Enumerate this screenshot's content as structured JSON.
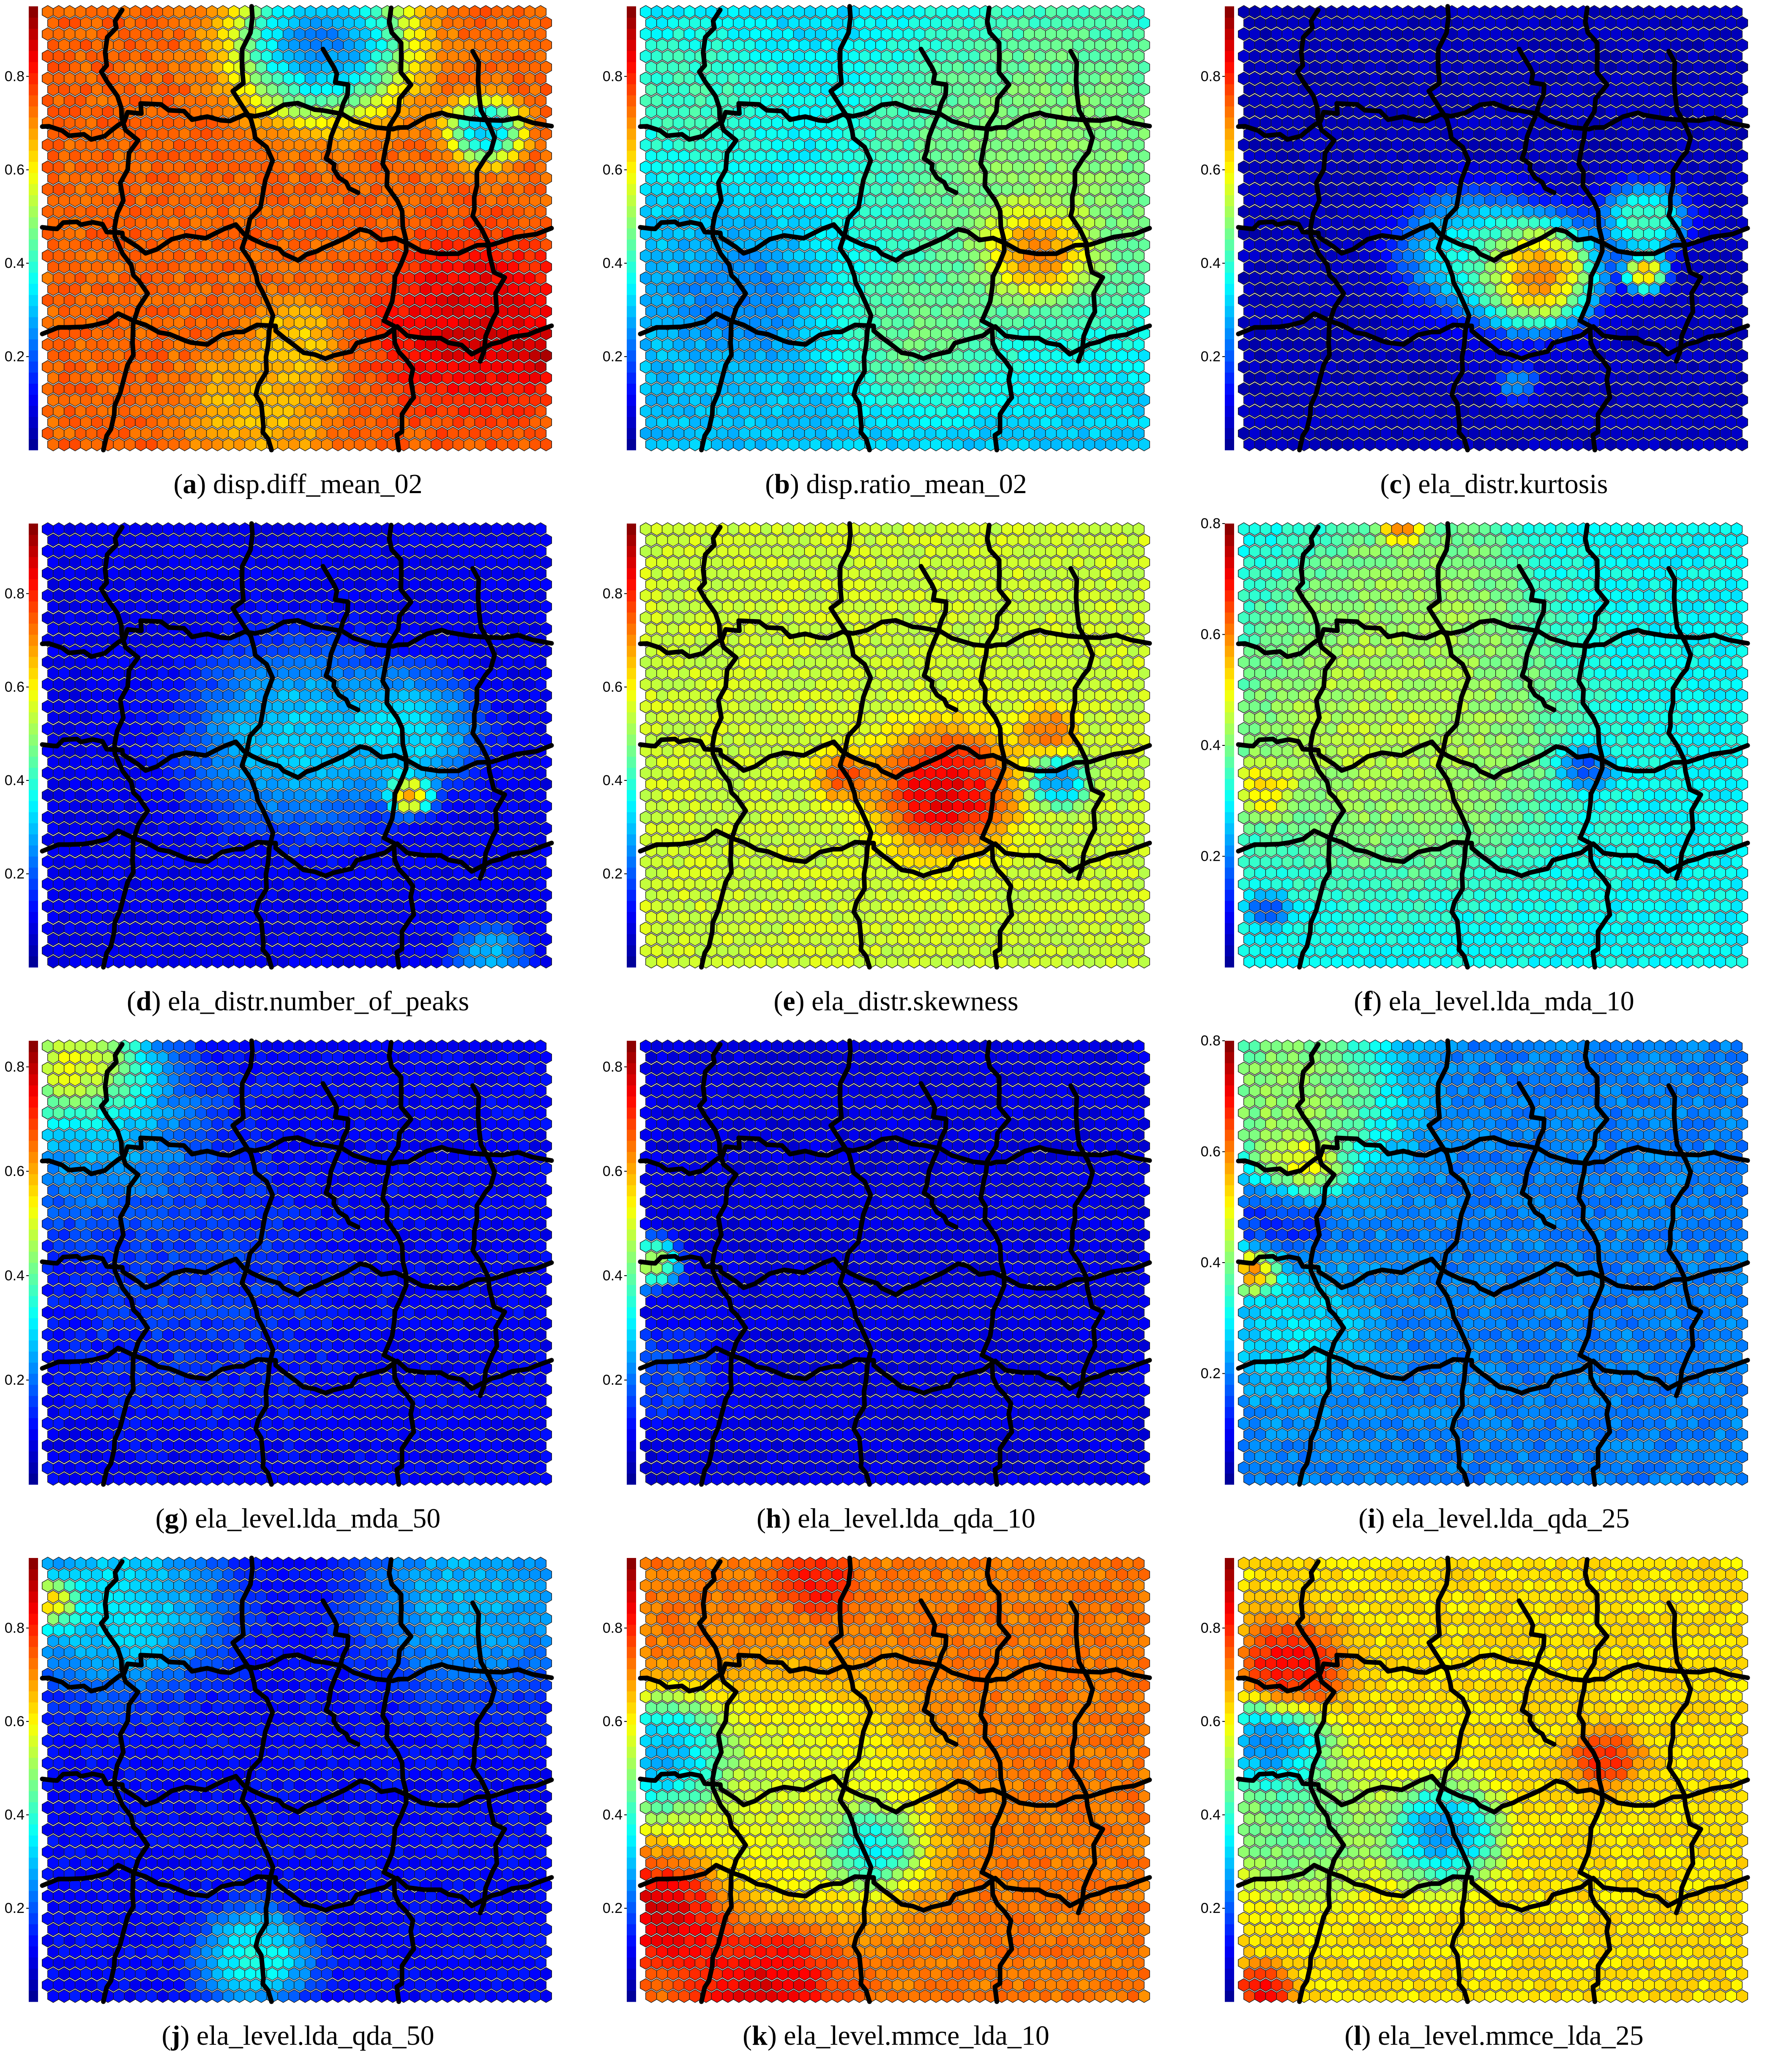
{
  "colormap": {
    "name": "jet",
    "stops": [
      "#00008f",
      "#0000ff",
      "#0080ff",
      "#00ffff",
      "#80ff80",
      "#ffff00",
      "#ff8000",
      "#ff0000",
      "#800000"
    ]
  },
  "chart_data": [
    {
      "type": "heatmap",
      "label": "a",
      "title": "disp.diff_mean_02",
      "colorbar_range": [
        0,
        0.95
      ],
      "colorbar_ticks": [
        0.2,
        0.4,
        0.6,
        0.8
      ],
      "base_value": 0.74,
      "hotspots": [
        {
          "cx": 0.55,
          "cy": 0.08,
          "r": 0.12,
          "v": 0.08
        },
        {
          "cx": 0.87,
          "cy": 0.28,
          "r": 0.05,
          "v": 0.15
        },
        {
          "cx": 0.85,
          "cy": 0.72,
          "r": 0.14,
          "v": 0.9
        },
        {
          "cx": 0.99,
          "cy": 0.78,
          "r": 0.04,
          "v": 0.95
        },
        {
          "cx": 0.5,
          "cy": 0.75,
          "r": 0.06,
          "v": 0.6
        },
        {
          "cx": 0.43,
          "cy": 0.9,
          "r": 0.1,
          "v": 0.62
        }
      ]
    },
    {
      "type": "heatmap",
      "label": "b",
      "title": "disp.ratio_mean_02",
      "colorbar_range": [
        0,
        0.95
      ],
      "colorbar_ticks": [
        0.2,
        0.4,
        0.6,
        0.8
      ],
      "base_value": 0.3,
      "hotspots": [
        {
          "cx": 0.1,
          "cy": 0.2,
          "r": 0.14,
          "v": 0.45
        },
        {
          "cx": 0.82,
          "cy": 0.35,
          "r": 0.3,
          "v": 0.55
        },
        {
          "cx": 0.78,
          "cy": 0.55,
          "r": 0.08,
          "v": 0.95
        },
        {
          "cx": 0.55,
          "cy": 0.75,
          "r": 0.12,
          "v": 0.5
        },
        {
          "cx": 0.2,
          "cy": 0.65,
          "r": 0.1,
          "v": 0.22
        }
      ]
    },
    {
      "type": "heatmap",
      "label": "c",
      "title": "ela_distr.kurtosis",
      "colorbar_range": [
        0,
        0.95
      ],
      "colorbar_ticks": [
        0.2,
        0.4,
        0.6,
        0.8
      ],
      "base_value": 0.05,
      "hotspots": [
        {
          "cx": 0.58,
          "cy": 0.6,
          "r": 0.09,
          "v": 0.95
        },
        {
          "cx": 0.45,
          "cy": 0.55,
          "r": 0.1,
          "v": 0.45
        },
        {
          "cx": 0.8,
          "cy": 0.48,
          "r": 0.06,
          "v": 0.55
        },
        {
          "cx": 0.8,
          "cy": 0.6,
          "r": 0.03,
          "v": 0.85
        },
        {
          "cx": 0.55,
          "cy": 0.85,
          "r": 0.03,
          "v": 0.35
        }
      ]
    },
    {
      "type": "heatmap",
      "label": "d",
      "title": "ela_distr.number_of_peaks",
      "colorbar_range": [
        0,
        0.95
      ],
      "colorbar_ticks": [
        0.2,
        0.4,
        0.6,
        0.8
      ],
      "base_value": 0.1,
      "hotspots": [
        {
          "cx": 0.5,
          "cy": 0.48,
          "r": 0.15,
          "v": 0.38
        },
        {
          "cx": 0.72,
          "cy": 0.47,
          "r": 0.1,
          "v": 0.4
        },
        {
          "cx": 0.72,
          "cy": 0.61,
          "r": 0.03,
          "v": 0.95
        },
        {
          "cx": 0.88,
          "cy": 0.97,
          "r": 0.05,
          "v": 0.35
        }
      ]
    },
    {
      "type": "heatmap",
      "label": "e",
      "title": "ela_distr.skewness",
      "colorbar_range": [
        0,
        0.95
      ],
      "colorbar_ticks": [
        0.2,
        0.4,
        0.6,
        0.8
      ],
      "base_value": 0.55,
      "hotspots": [
        {
          "cx": 0.6,
          "cy": 0.6,
          "r": 0.1,
          "v": 0.95
        },
        {
          "cx": 0.4,
          "cy": 0.57,
          "r": 0.04,
          "v": 0.82
        },
        {
          "cx": 0.82,
          "cy": 0.58,
          "r": 0.04,
          "v": 0.15
        },
        {
          "cx": 0.8,
          "cy": 0.47,
          "r": 0.04,
          "v": 0.8
        }
      ]
    },
    {
      "type": "heatmap",
      "label": "f",
      "title": "ela_level.lda_mda_10",
      "colorbar_range": [
        0,
        0.8
      ],
      "colorbar_ticks": [
        0.2,
        0.4,
        0.6,
        0.8
      ],
      "base_value": 0.3,
      "hotspots": [
        {
          "cx": 0.3,
          "cy": 0.45,
          "r": 0.25,
          "v": 0.5
        },
        {
          "cx": 0.35,
          "cy": 0.15,
          "r": 0.15,
          "v": 0.45
        },
        {
          "cx": 0.32,
          "cy": 0.01,
          "r": 0.03,
          "v": 0.8
        },
        {
          "cx": 0.05,
          "cy": 0.6,
          "r": 0.05,
          "v": 0.6
        },
        {
          "cx": 0.68,
          "cy": 0.55,
          "r": 0.04,
          "v": 0.1
        },
        {
          "cx": 0.06,
          "cy": 0.87,
          "r": 0.03,
          "v": 0.1
        }
      ]
    },
    {
      "type": "heatmap",
      "label": "g",
      "title": "ela_level.lda_mda_50",
      "colorbar_range": [
        0,
        0.85
      ],
      "colorbar_ticks": [
        0.2,
        0.4,
        0.6,
        0.8
      ],
      "base_value": 0.1,
      "hotspots": [
        {
          "cx": 0.07,
          "cy": 0.07,
          "r": 0.1,
          "v": 0.75
        },
        {
          "cx": 0.12,
          "cy": 0.2,
          "r": 0.16,
          "v": 0.3
        },
        {
          "cx": 0.3,
          "cy": 0.55,
          "r": 0.2,
          "v": 0.17
        }
      ]
    },
    {
      "type": "heatmap",
      "label": "h",
      "title": "ela_level.lda_qda_10",
      "colorbar_range": [
        0,
        0.85
      ],
      "colorbar_ticks": [
        0.2,
        0.4,
        0.6,
        0.8
      ],
      "base_value": 0.08,
      "hotspots": [
        {
          "cx": 0.02,
          "cy": 0.5,
          "r": 0.04,
          "v": 0.6
        },
        {
          "cx": 0.04,
          "cy": 0.75,
          "r": 0.08,
          "v": 0.2
        }
      ]
    },
    {
      "type": "heatmap",
      "label": "i",
      "title": "ela_level.lda_qda_25",
      "colorbar_range": [
        0,
        0.8
      ],
      "colorbar_ticks": [
        0.2,
        0.4,
        0.6,
        0.8
      ],
      "base_value": 0.2,
      "hotspots": [
        {
          "cx": 0.1,
          "cy": 0.12,
          "r": 0.15,
          "v": 0.5
        },
        {
          "cx": 0.12,
          "cy": 0.28,
          "r": 0.06,
          "v": 0.62
        },
        {
          "cx": 0.03,
          "cy": 0.52,
          "r": 0.04,
          "v": 0.8
        },
        {
          "cx": 0.08,
          "cy": 0.4,
          "r": 0.08,
          "v": 0.1
        },
        {
          "cx": 0.1,
          "cy": 0.65,
          "r": 0.12,
          "v": 0.3
        }
      ]
    },
    {
      "type": "heatmap",
      "label": "j",
      "title": "ela_level.lda_qda_50",
      "colorbar_range": [
        0,
        0.95
      ],
      "colorbar_ticks": [
        0.2,
        0.4,
        0.6,
        0.8
      ],
      "base_value": 0.12,
      "hotspots": [
        {
          "cx": 0.02,
          "cy": 0.1,
          "r": 0.04,
          "v": 0.9
        },
        {
          "cx": 0.15,
          "cy": 0.1,
          "r": 0.15,
          "v": 0.4
        },
        {
          "cx": 0.85,
          "cy": 0.08,
          "r": 0.16,
          "v": 0.35
        },
        {
          "cx": 0.42,
          "cy": 0.9,
          "r": 0.08,
          "v": 0.45
        }
      ]
    },
    {
      "type": "heatmap",
      "label": "k",
      "title": "ela_level.mmce_lda_10",
      "colorbar_range": [
        0,
        0.95
      ],
      "colorbar_ticks": [
        0.2,
        0.4,
        0.6,
        0.8
      ],
      "base_value": 0.72,
      "hotspots": [
        {
          "cx": 0.05,
          "cy": 0.45,
          "r": 0.1,
          "v": 0.1
        },
        {
          "cx": 0.3,
          "cy": 0.55,
          "r": 0.2,
          "v": 0.5
        },
        {
          "cx": 0.45,
          "cy": 0.65,
          "r": 0.07,
          "v": 0.15
        },
        {
          "cx": 0.05,
          "cy": 0.8,
          "r": 0.09,
          "v": 0.92
        },
        {
          "cx": 0.25,
          "cy": 0.95,
          "r": 0.1,
          "v": 0.9
        },
        {
          "cx": 0.35,
          "cy": 0.05,
          "r": 0.05,
          "v": 0.85
        }
      ]
    },
    {
      "type": "heatmap",
      "label": "l",
      "title": "ela_level.mmce_lda_25",
      "colorbar_range": [
        0,
        0.95
      ],
      "colorbar_ticks": [
        0.2,
        0.4,
        0.6,
        0.8
      ],
      "base_value": 0.62,
      "hotspots": [
        {
          "cx": 0.1,
          "cy": 0.25,
          "r": 0.08,
          "v": 0.9
        },
        {
          "cx": 0.06,
          "cy": 0.42,
          "r": 0.08,
          "v": 0.1
        },
        {
          "cx": 0.4,
          "cy": 0.62,
          "r": 0.08,
          "v": 0.15
        },
        {
          "cx": 0.12,
          "cy": 0.6,
          "r": 0.12,
          "v": 0.4
        },
        {
          "cx": 0.72,
          "cy": 0.45,
          "r": 0.05,
          "v": 0.85
        },
        {
          "cx": 0.05,
          "cy": 0.97,
          "r": 0.04,
          "v": 0.9
        }
      ]
    }
  ]
}
